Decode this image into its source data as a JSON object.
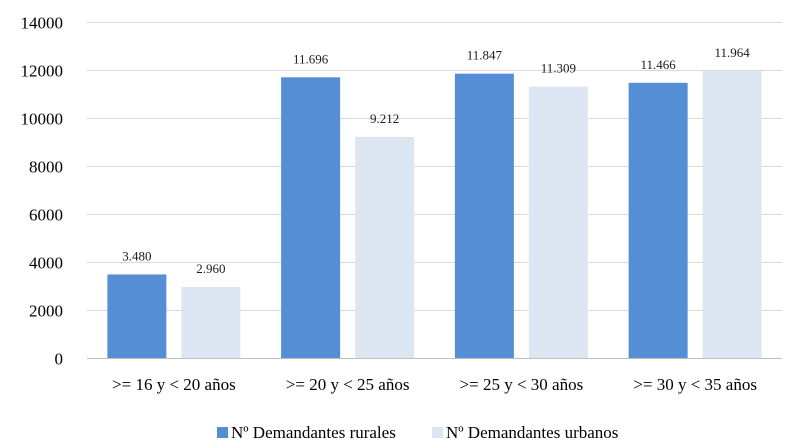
{
  "chart_data": {
    "type": "bar",
    "title": "",
    "xlabel": "",
    "ylabel": "",
    "categories": [
      ">= 16 y < 20 años",
      ">= 20 y < 25 años",
      ">= 25 y < 30 años",
      ">= 30 y < 35 años"
    ],
    "series": [
      {
        "name": "Nº Demandantes rurales",
        "color": "#558ed5",
        "values": [
          3480,
          11696,
          11847,
          11466
        ],
        "labels": [
          "3.480",
          "11.696",
          "11.847",
          "11.466"
        ]
      },
      {
        "name": "Nº Demandantes urbanos",
        "color": "#dce6f2",
        "values": [
          2960,
          9212,
          11309,
          11964
        ],
        "labels": [
          "2.960",
          "9.212",
          "11.309",
          "11.964"
        ]
      }
    ],
    "ylim": [
      0,
      14000
    ],
    "yticks": [
      0,
      2000,
      4000,
      6000,
      8000,
      10000,
      12000,
      14000
    ],
    "ytick_labels": [
      "0",
      "2000",
      "4000",
      "6000",
      "8000",
      "10000",
      "12000",
      "14000"
    ],
    "grid": true,
    "legend_position": "bottom"
  }
}
